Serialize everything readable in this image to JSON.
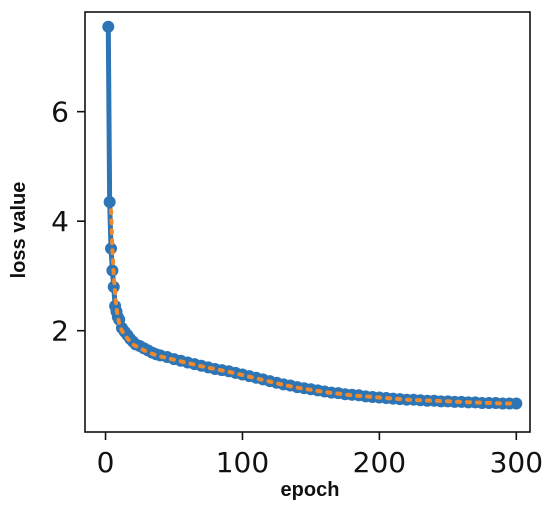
{
  "chart_data": {
    "type": "line",
    "title": "",
    "xlabel": "epoch",
    "ylabel": "loss value",
    "xlim": [
      -15,
      310
    ],
    "ylim": [
      0.15,
      7.82
    ],
    "xticks": [
      0,
      100,
      200,
      300
    ],
    "xtick_labels": [
      "0",
      "100",
      "200",
      "300"
    ],
    "yticks": [
      2,
      4,
      6
    ],
    "ytick_labels": [
      "2",
      "4",
      "6"
    ],
    "grid": false,
    "legend": "none",
    "series": [
      {
        "style": "solid-with-markers",
        "color": "#2e75b6",
        "x": [
          2,
          3,
          4,
          5,
          6,
          7,
          8,
          9,
          10,
          12,
          14,
          16,
          18,
          20,
          22,
          25,
          28,
          31,
          34,
          37,
          40,
          45,
          50,
          55,
          60,
          65,
          70,
          75,
          80,
          85,
          90,
          95,
          100,
          105,
          110,
          115,
          120,
          125,
          130,
          135,
          140,
          145,
          150,
          155,
          160,
          165,
          170,
          175,
          180,
          185,
          190,
          195,
          200,
          205,
          210,
          215,
          220,
          225,
          230,
          235,
          240,
          245,
          250,
          255,
          260,
          265,
          270,
          275,
          280,
          285,
          290,
          295,
          300
        ],
        "y": [
          7.55,
          4.35,
          3.5,
          3.1,
          2.8,
          2.45,
          2.35,
          2.25,
          2.2,
          2.05,
          1.98,
          1.92,
          1.85,
          1.8,
          1.75,
          1.72,
          1.68,
          1.64,
          1.6,
          1.57,
          1.55,
          1.52,
          1.48,
          1.45,
          1.42,
          1.39,
          1.36,
          1.33,
          1.3,
          1.28,
          1.26,
          1.23,
          1.2,
          1.17,
          1.14,
          1.11,
          1.08,
          1.05,
          1.02,
          1.0,
          0.97,
          0.95,
          0.93,
          0.91,
          0.89,
          0.87,
          0.86,
          0.84,
          0.83,
          0.82,
          0.8,
          0.79,
          0.78,
          0.77,
          0.76,
          0.75,
          0.74,
          0.74,
          0.73,
          0.72,
          0.72,
          0.71,
          0.71,
          0.7,
          0.7,
          0.69,
          0.69,
          0.68,
          0.68,
          0.68,
          0.67,
          0.67,
          0.67
        ]
      },
      {
        "style": "dotted",
        "color": "#f0892b",
        "x": [
          4,
          5,
          6,
          7,
          8,
          10,
          12,
          14,
          16,
          18,
          20,
          25,
          30,
          35,
          40,
          50,
          60,
          70,
          80,
          90,
          100,
          110,
          120,
          130,
          140,
          150,
          160,
          170,
          180,
          190,
          200,
          210,
          220,
          230,
          240,
          250,
          260,
          270,
          280,
          290,
          300
        ],
        "y": [
          4.2,
          3.5,
          3.0,
          2.7,
          2.4,
          2.12,
          2.0,
          1.92,
          1.86,
          1.8,
          1.75,
          1.68,
          1.62,
          1.57,
          1.53,
          1.47,
          1.41,
          1.35,
          1.3,
          1.25,
          1.19,
          1.13,
          1.07,
          1.01,
          0.96,
          0.92,
          0.88,
          0.85,
          0.82,
          0.8,
          0.78,
          0.76,
          0.74,
          0.73,
          0.72,
          0.71,
          0.7,
          0.69,
          0.68,
          0.67,
          0.67
        ]
      }
    ]
  }
}
